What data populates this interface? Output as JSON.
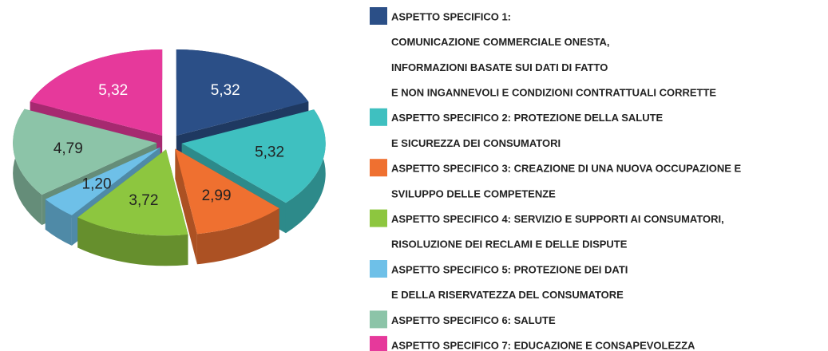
{
  "chart_data": {
    "type": "pie",
    "categories": [
      [
        "ASPETTO SPECIFICO 1:",
        "COMUNICAZIONE COMMERCIALE ONESTA,",
        "INFORMAZIONI BASATE SUI DATI DI FATTO",
        "E NON INGANNEVOLI  E CONDIZIONI CONTRATTUALI CORRETTE"
      ],
      [
        "ASPETTO SPECIFICO 2: PROTEZIONE DELLA SALUTE",
        "E SICUREZZA DEI CONSUMATORI"
      ],
      [
        "ASPETTO SPECIFICO 3: CREAZIONE DI UNA NUOVA OCCUPAZIONE E",
        "SVILUPPO DELLE COMPETENZE"
      ],
      [
        "ASPETTO SPECIFICO 4: SERVIZIO E SUPPORTI AI CONSUMATORI,",
        "RISOLUZIONE DEI RECLAMI E DELLE DISPUTE"
      ],
      [
        "ASPETTO SPECIFICO 5: PROTEZIONE DEI DATI",
        "E DELLA RISERVATEZZA DEL CONSUMATORE"
      ],
      [
        "ASPETTO SPECIFICO 6: SALUTE"
      ],
      [
        "ASPETTO SPECIFICO 7: EDUCAZIONE E CONSAPEVOLEZZA"
      ]
    ],
    "values": [
      5.32,
      5.32,
      2.99,
      3.72,
      1.2,
      4.79,
      5.32
    ],
    "value_labels": [
      "5,32",
      "5,32",
      "2,99",
      "3,72",
      "1,20",
      "4,79",
      "5,32"
    ],
    "colors": [
      "#2b4f87",
      "#3fc0c0",
      "#ef7030",
      "#8dc63f",
      "#6ec0e8",
      "#8cc4a8",
      "#e6399b"
    ],
    "legend": "right"
  }
}
